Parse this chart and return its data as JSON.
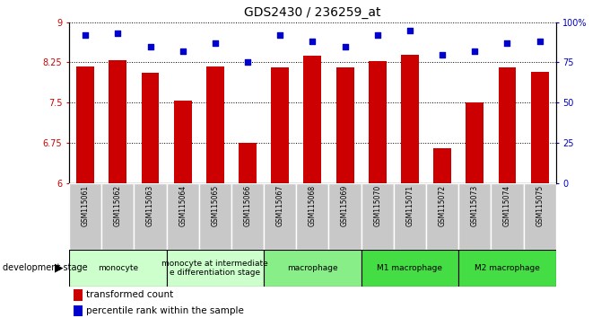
{
  "title": "GDS2430 / 236259_at",
  "samples": [
    "GSM115061",
    "GSM115062",
    "GSM115063",
    "GSM115064",
    "GSM115065",
    "GSM115066",
    "GSM115067",
    "GSM115068",
    "GSM115069",
    "GSM115070",
    "GSM115071",
    "GSM115072",
    "GSM115073",
    "GSM115074",
    "GSM115075"
  ],
  "bar_values": [
    8.17,
    8.29,
    8.05,
    7.54,
    8.17,
    6.75,
    8.16,
    8.38,
    8.16,
    8.28,
    8.4,
    6.65,
    7.51,
    8.16,
    8.08
  ],
  "dot_values": [
    92,
    93,
    85,
    82,
    87,
    75,
    92,
    88,
    85,
    92,
    95,
    80,
    82,
    87,
    88
  ],
  "ylim_left": [
    6,
    9
  ],
  "ylim_right": [
    0,
    100
  ],
  "yticks_left": [
    6,
    6.75,
    7.5,
    8.25,
    9
  ],
  "yticks_right": [
    0,
    25,
    50,
    75,
    100
  ],
  "ytick_labels_left": [
    "6",
    "6.75",
    "7.5",
    "8.25",
    "9"
  ],
  "ytick_labels_right": [
    "0",
    "25",
    "50",
    "75",
    "100%"
  ],
  "bar_color": "#cc0000",
  "dot_color": "#0000cc",
  "bar_width": 0.55,
  "bg_color": "#ffffff",
  "group_defs": [
    {
      "start": 0,
      "end": 2,
      "label": "monocyte",
      "color": "#ccffcc"
    },
    {
      "start": 3,
      "end": 5,
      "label": "monocyte at intermediate\ne differentiation stage",
      "color": "#ccffcc"
    },
    {
      "start": 6,
      "end": 8,
      "label": "macrophage",
      "color": "#88ee88"
    },
    {
      "start": 9,
      "end": 11,
      "label": "M1 macrophage",
      "color": "#44dd44"
    },
    {
      "start": 12,
      "end": 14,
      "label": "M2 macrophage",
      "color": "#44dd44"
    }
  ],
  "legend_bar_label": "transformed count",
  "legend_dot_label": "percentile rank within the sample",
  "dev_stage_label": "development stage",
  "ticklabel_bg": "#c8c8c8"
}
